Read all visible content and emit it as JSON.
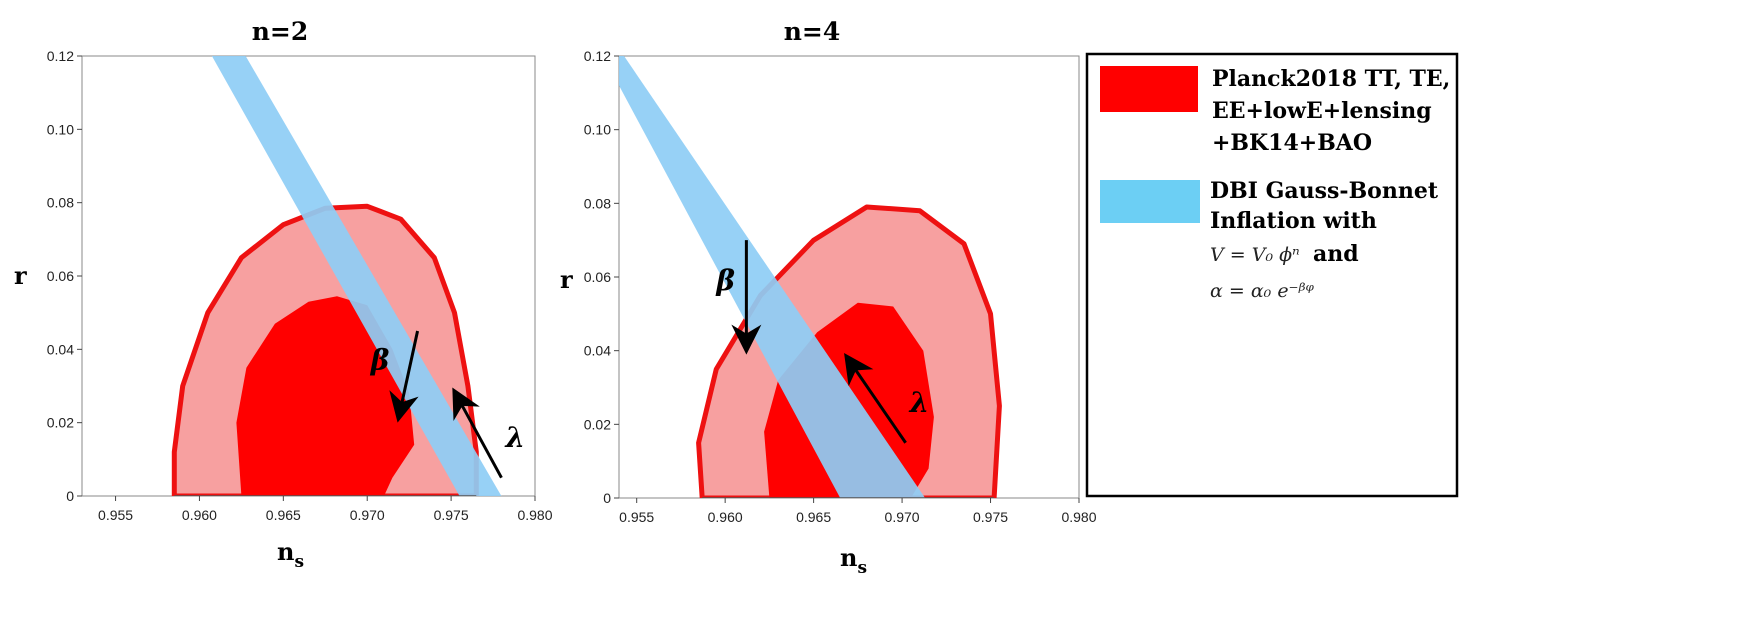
{
  "colors": {
    "contour_95": "#f7a0a0",
    "contour_68": "#ff0000",
    "contour_edge": "#ee1111",
    "model_band": "#8ecdf5",
    "legend_band": "#6ccff4"
  },
  "chart_data": [
    {
      "type": "area",
      "title": "n=2",
      "xlabel": "n",
      "xlabel_sub": "s",
      "ylabel": "r",
      "xlim": [
        0.953,
        0.98
      ],
      "ylim": [
        0,
        0.12
      ],
      "xticks": [
        "0.955",
        "0.960",
        "0.965",
        "0.970",
        "0.975",
        "0.980"
      ],
      "yticks": [
        "0",
        "0.02",
        "0.04",
        "0.06",
        "0.08",
        "0.10",
        "0.12"
      ],
      "grid": false,
      "contour_95": [
        [
          0.9585,
          0
        ],
        [
          0.9585,
          0.012
        ],
        [
          0.959,
          0.03
        ],
        [
          0.9605,
          0.05
        ],
        [
          0.9625,
          0.065
        ],
        [
          0.965,
          0.074
        ],
        [
          0.9675,
          0.0785
        ],
        [
          0.97,
          0.079
        ],
        [
          0.972,
          0.0755
        ],
        [
          0.974,
          0.065
        ],
        [
          0.9752,
          0.05
        ],
        [
          0.976,
          0.03
        ],
        [
          0.9765,
          0.012
        ],
        [
          0.9765,
          0
        ]
      ],
      "contour_68": [
        [
          0.9625,
          0
        ],
        [
          0.9622,
          0.02
        ],
        [
          0.9628,
          0.035
        ],
        [
          0.9645,
          0.047
        ],
        [
          0.9665,
          0.053
        ],
        [
          0.9682,
          0.0545
        ],
        [
          0.97,
          0.052
        ],
        [
          0.9715,
          0.04
        ],
        [
          0.9725,
          0.028
        ],
        [
          0.9728,
          0.014
        ],
        [
          0.9715,
          0.005
        ],
        [
          0.971,
          0
        ]
      ],
      "model_band": [
        [
          0.9605,
          0.122
        ],
        [
          0.9625,
          0.122
        ],
        [
          0.978,
          0
        ],
        [
          0.9755,
          0
        ]
      ],
      "annotations": [
        {
          "label": "β",
          "from": [
            0.973,
            0.045
          ],
          "to": [
            0.972,
            0.024
          ]
        },
        {
          "label": "λ",
          "from": [
            0.978,
            0.005
          ],
          "to": [
            0.9755,
            0.026
          ]
        }
      ]
    },
    {
      "type": "area",
      "title": "n=4",
      "xlabel": "n",
      "xlabel_sub": "s",
      "ylabel": "r",
      "xlim": [
        0.954,
        0.98
      ],
      "ylim": [
        0,
        0.12
      ],
      "xticks": [
        "0.955",
        "0.960",
        "0.965",
        "0.970",
        "0.975",
        "0.980"
      ],
      "yticks": [
        "0",
        "0.02",
        "0.04",
        "0.06",
        "0.08",
        "0.10",
        "0.12"
      ],
      "grid": false,
      "contour_95": [
        [
          0.9587,
          0
        ],
        [
          0.9585,
          0.015
        ],
        [
          0.9595,
          0.035
        ],
        [
          0.962,
          0.055
        ],
        [
          0.965,
          0.07
        ],
        [
          0.968,
          0.079
        ],
        [
          0.971,
          0.078
        ],
        [
          0.9735,
          0.069
        ],
        [
          0.975,
          0.05
        ],
        [
          0.9755,
          0.025
        ],
        [
          0.9752,
          0
        ]
      ],
      "contour_68": [
        [
          0.9625,
          0
        ],
        [
          0.9622,
          0.018
        ],
        [
          0.963,
          0.032
        ],
        [
          0.9652,
          0.045
        ],
        [
          0.9675,
          0.053
        ],
        [
          0.9695,
          0.052
        ],
        [
          0.9712,
          0.04
        ],
        [
          0.9718,
          0.022
        ],
        [
          0.9715,
          0.008
        ],
        [
          0.9705,
          0
        ]
      ],
      "model_band": [
        [
          0.954,
          0.112
        ],
        [
          0.954,
          0.122
        ],
        [
          0.9713,
          0
        ],
        [
          0.9665,
          0
        ]
      ],
      "annotations": [
        {
          "label": "β",
          "from": [
            0.9612,
            0.07
          ],
          "to": [
            0.9612,
            0.043
          ]
        },
        {
          "label": "λ",
          "from": [
            0.9702,
            0.015
          ],
          "to": [
            0.9672,
            0.036
          ]
        }
      ]
    }
  ],
  "legend": {
    "entries": [
      {
        "lines": [
          "Planck2018 TT, TE,",
          "EE+lowE+lensing",
          "+BK14+BAO"
        ]
      },
      {
        "lines": [
          "DBI Gauss-Bonnet",
          "Inflation with"
        ]
      }
    ],
    "formula_potential": "V = V₀ ϕⁿ",
    "formula_and": "and",
    "formula_coupling": "α = α₀ e⁻ᵝᵠ"
  }
}
